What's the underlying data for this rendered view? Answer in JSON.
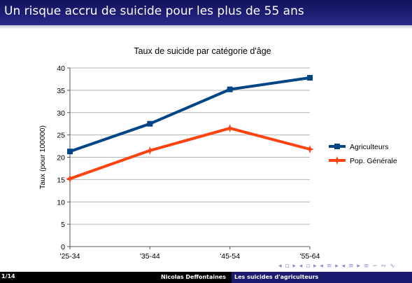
{
  "slide": {
    "title": "Un risque accru de suicide pour les plus de 55 ans",
    "page_number": "1/14",
    "author": "Nicolas Deffontaines",
    "short_title": "Les suicides d'agriculteurs",
    "nav_symbols": "◂ ▫ ▸ ◂ ▫ ▸ ◂ ≡ ▸ ◂ ≡ ▸   ≡   ∽ ∾ ∿"
  },
  "colors": {
    "agri": "#004586",
    "pop": "#ff420e",
    "grid": "#b3b3b3"
  },
  "chart_data": {
    "type": "line",
    "title": "Taux de suicide par catégorie d'âge",
    "xlabel": "",
    "ylabel": "Taux (pour 100000)",
    "categories": [
      "'25-34",
      "'35-44",
      "'45-54",
      "'55-64"
    ],
    "ylim": [
      0,
      40
    ],
    "yticks": [
      0,
      5,
      10,
      15,
      20,
      25,
      30,
      35,
      40
    ],
    "grid": "horizontal",
    "legend_position": "right",
    "series": [
      {
        "name": "Agriculteurs",
        "values": [
          21.3,
          27.5,
          35.2,
          37.8
        ],
        "color": "#004586",
        "marker": "square"
      },
      {
        "name": "Pop. Générale",
        "values": [
          15.2,
          21.5,
          26.5,
          21.8
        ],
        "color": "#ff420e",
        "marker": "star"
      }
    ]
  }
}
